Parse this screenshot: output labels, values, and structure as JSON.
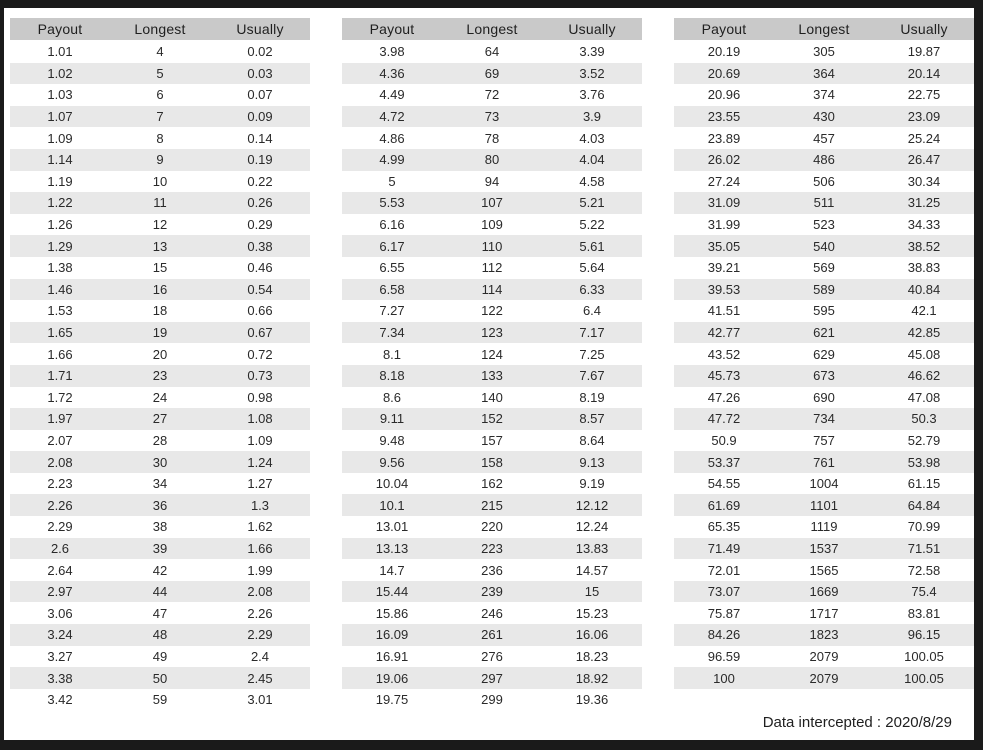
{
  "columns": [
    "Payout",
    "Longest",
    "Usually"
  ],
  "tables": [
    {
      "rows": [
        [
          "1.01",
          "4",
          "0.02"
        ],
        [
          "1.02",
          "5",
          "0.03"
        ],
        [
          "1.03",
          "6",
          "0.07"
        ],
        [
          "1.07",
          "7",
          "0.09"
        ],
        [
          "1.09",
          "8",
          "0.14"
        ],
        [
          "1.14",
          "9",
          "0.19"
        ],
        [
          "1.19",
          "10",
          "0.22"
        ],
        [
          "1.22",
          "11",
          "0.26"
        ],
        [
          "1.26",
          "12",
          "0.29"
        ],
        [
          "1.29",
          "13",
          "0.38"
        ],
        [
          "1.38",
          "15",
          "0.46"
        ],
        [
          "1.46",
          "16",
          "0.54"
        ],
        [
          "1.53",
          "18",
          "0.66"
        ],
        [
          "1.65",
          "19",
          "0.67"
        ],
        [
          "1.66",
          "20",
          "0.72"
        ],
        [
          "1.71",
          "23",
          "0.73"
        ],
        [
          "1.72",
          "24",
          "0.98"
        ],
        [
          "1.97",
          "27",
          "1.08"
        ],
        [
          "2.07",
          "28",
          "1.09"
        ],
        [
          "2.08",
          "30",
          "1.24"
        ],
        [
          "2.23",
          "34",
          "1.27"
        ],
        [
          "2.26",
          "36",
          "1.3"
        ],
        [
          "2.29",
          "38",
          "1.62"
        ],
        [
          "2.6",
          "39",
          "1.66"
        ],
        [
          "2.64",
          "42",
          "1.99"
        ],
        [
          "2.97",
          "44",
          "2.08"
        ],
        [
          "3.06",
          "47",
          "2.26"
        ],
        [
          "3.24",
          "48",
          "2.29"
        ],
        [
          "3.27",
          "49",
          "2.4"
        ],
        [
          "3.38",
          "50",
          "2.45"
        ],
        [
          "3.42",
          "59",
          "3.01"
        ]
      ]
    },
    {
      "rows": [
        [
          "3.98",
          "64",
          "3.39"
        ],
        [
          "4.36",
          "69",
          "3.52"
        ],
        [
          "4.49",
          "72",
          "3.76"
        ],
        [
          "4.72",
          "73",
          "3.9"
        ],
        [
          "4.86",
          "78",
          "4.03"
        ],
        [
          "4.99",
          "80",
          "4.04"
        ],
        [
          "5",
          "94",
          "4.58"
        ],
        [
          "5.53",
          "107",
          "5.21"
        ],
        [
          "6.16",
          "109",
          "5.22"
        ],
        [
          "6.17",
          "110",
          "5.61"
        ],
        [
          "6.55",
          "112",
          "5.64"
        ],
        [
          "6.58",
          "114",
          "6.33"
        ],
        [
          "7.27",
          "122",
          "6.4"
        ],
        [
          "7.34",
          "123",
          "7.17"
        ],
        [
          "8.1",
          "124",
          "7.25"
        ],
        [
          "8.18",
          "133",
          "7.67"
        ],
        [
          "8.6",
          "140",
          "8.19"
        ],
        [
          "9.11",
          "152",
          "8.57"
        ],
        [
          "9.48",
          "157",
          "8.64"
        ],
        [
          "9.56",
          "158",
          "9.13"
        ],
        [
          "10.04",
          "162",
          "9.19"
        ],
        [
          "10.1",
          "215",
          "12.12"
        ],
        [
          "13.01",
          "220",
          "12.24"
        ],
        [
          "13.13",
          "223",
          "13.83"
        ],
        [
          "14.7",
          "236",
          "14.57"
        ],
        [
          "15.44",
          "239",
          "15"
        ],
        [
          "15.86",
          "246",
          "15.23"
        ],
        [
          "16.09",
          "261",
          "16.06"
        ],
        [
          "16.91",
          "276",
          "18.23"
        ],
        [
          "19.06",
          "297",
          "18.92"
        ],
        [
          "19.75",
          "299",
          "19.36"
        ]
      ]
    },
    {
      "rows": [
        [
          "20.19",
          "305",
          "19.87"
        ],
        [
          "20.69",
          "364",
          "20.14"
        ],
        [
          "20.96",
          "374",
          "22.75"
        ],
        [
          "23.55",
          "430",
          "23.09"
        ],
        [
          "23.89",
          "457",
          "25.24"
        ],
        [
          "26.02",
          "486",
          "26.47"
        ],
        [
          "27.24",
          "506",
          "30.34"
        ],
        [
          "31.09",
          "511",
          "31.25"
        ],
        [
          "31.99",
          "523",
          "34.33"
        ],
        [
          "35.05",
          "540",
          "38.52"
        ],
        [
          "39.21",
          "569",
          "38.83"
        ],
        [
          "39.53",
          "589",
          "40.84"
        ],
        [
          "41.51",
          "595",
          "42.1"
        ],
        [
          "42.77",
          "621",
          "42.85"
        ],
        [
          "43.52",
          "629",
          "45.08"
        ],
        [
          "45.73",
          "673",
          "46.62"
        ],
        [
          "47.26",
          "690",
          "47.08"
        ],
        [
          "47.72",
          "734",
          "50.3"
        ],
        [
          "50.9",
          "757",
          "52.79"
        ],
        [
          "53.37",
          "761",
          "53.98"
        ],
        [
          "54.55",
          "1004",
          "61.15"
        ],
        [
          "61.69",
          "1101",
          "64.84"
        ],
        [
          "65.35",
          "1119",
          "70.99"
        ],
        [
          "71.49",
          "1537",
          "71.51"
        ],
        [
          "72.01",
          "1565",
          "72.58"
        ],
        [
          "73.07",
          "1669",
          "75.4"
        ],
        [
          "75.87",
          "1717",
          "83.81"
        ],
        [
          "84.26",
          "1823",
          "96.15"
        ],
        [
          "96.59",
          "2079",
          "100.05"
        ],
        [
          "100",
          "2079",
          "100.05"
        ]
      ]
    }
  ],
  "footer": {
    "label": "Data intercepted : 2020/8/29"
  },
  "colors": {
    "frame": "#1a1a1a",
    "header_bg": "#c9c9c9",
    "alt_row_bg": "#e8e8e8",
    "text": "#2a2a2a"
  }
}
